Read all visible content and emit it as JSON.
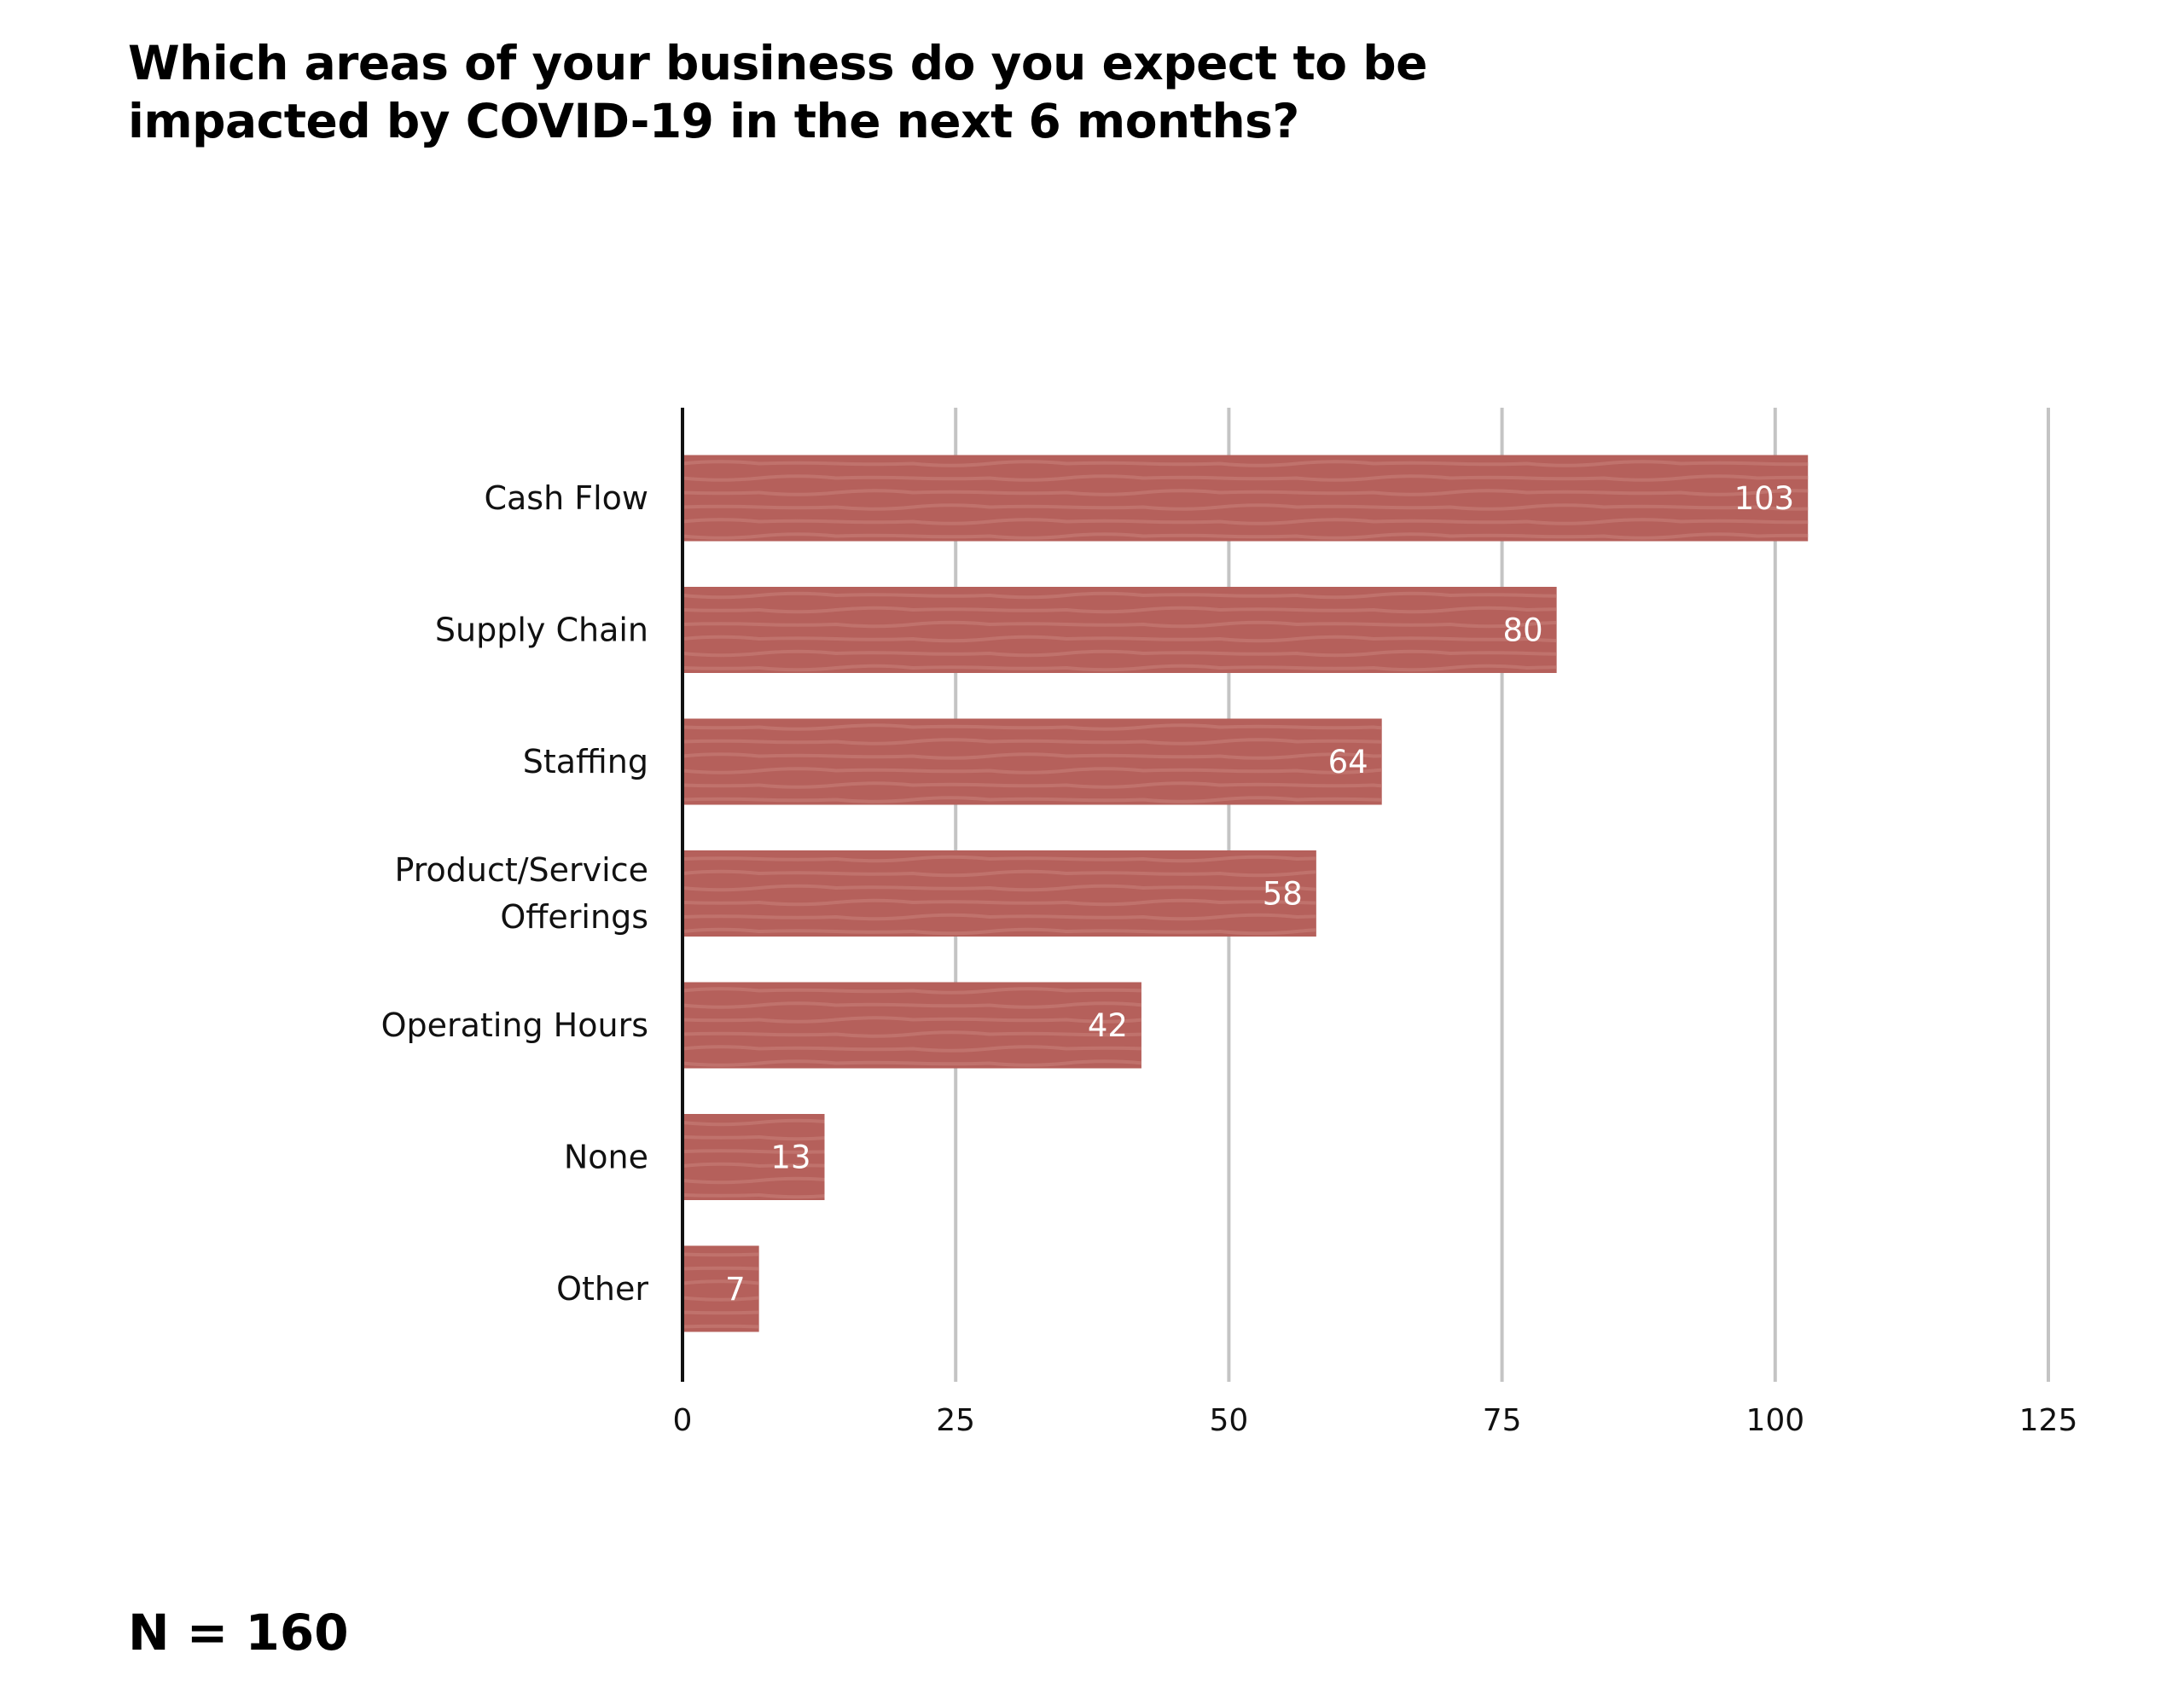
{
  "title_lines": [
    "Which areas of your business do you expect to be",
    "impacted by COVID-19 in the next 6 months?"
  ],
  "note": "N = 160",
  "colors": {
    "bar": "#b5605b",
    "bar_texture": "#c57a74",
    "grid": "#c4c4c4",
    "axis": "#111111"
  },
  "chart_data": {
    "type": "bar",
    "orientation": "horizontal",
    "title": "Which areas of your business do you expect to be impacted by COVID-19 in the next 6 months?",
    "categories": [
      [
        "Cash Flow"
      ],
      [
        "Supply Chain"
      ],
      [
        "Staffing"
      ],
      [
        "Product/Service",
        "Offerings"
      ],
      [
        "Operating Hours"
      ],
      [
        "None"
      ],
      [
        "Other"
      ]
    ],
    "values": [
      103,
      80,
      64,
      58,
      42,
      13,
      7
    ],
    "data_labels": [
      "103",
      "80",
      "64",
      "58",
      "42",
      "13",
      "7"
    ],
    "xlim": [
      0,
      125
    ],
    "xticks": [
      0,
      25,
      50,
      75,
      100,
      125
    ],
    "xtick_labels": [
      "0",
      "25",
      "50",
      "75",
      "100",
      "125"
    ],
    "grid": "vertical",
    "legend": "none"
  }
}
